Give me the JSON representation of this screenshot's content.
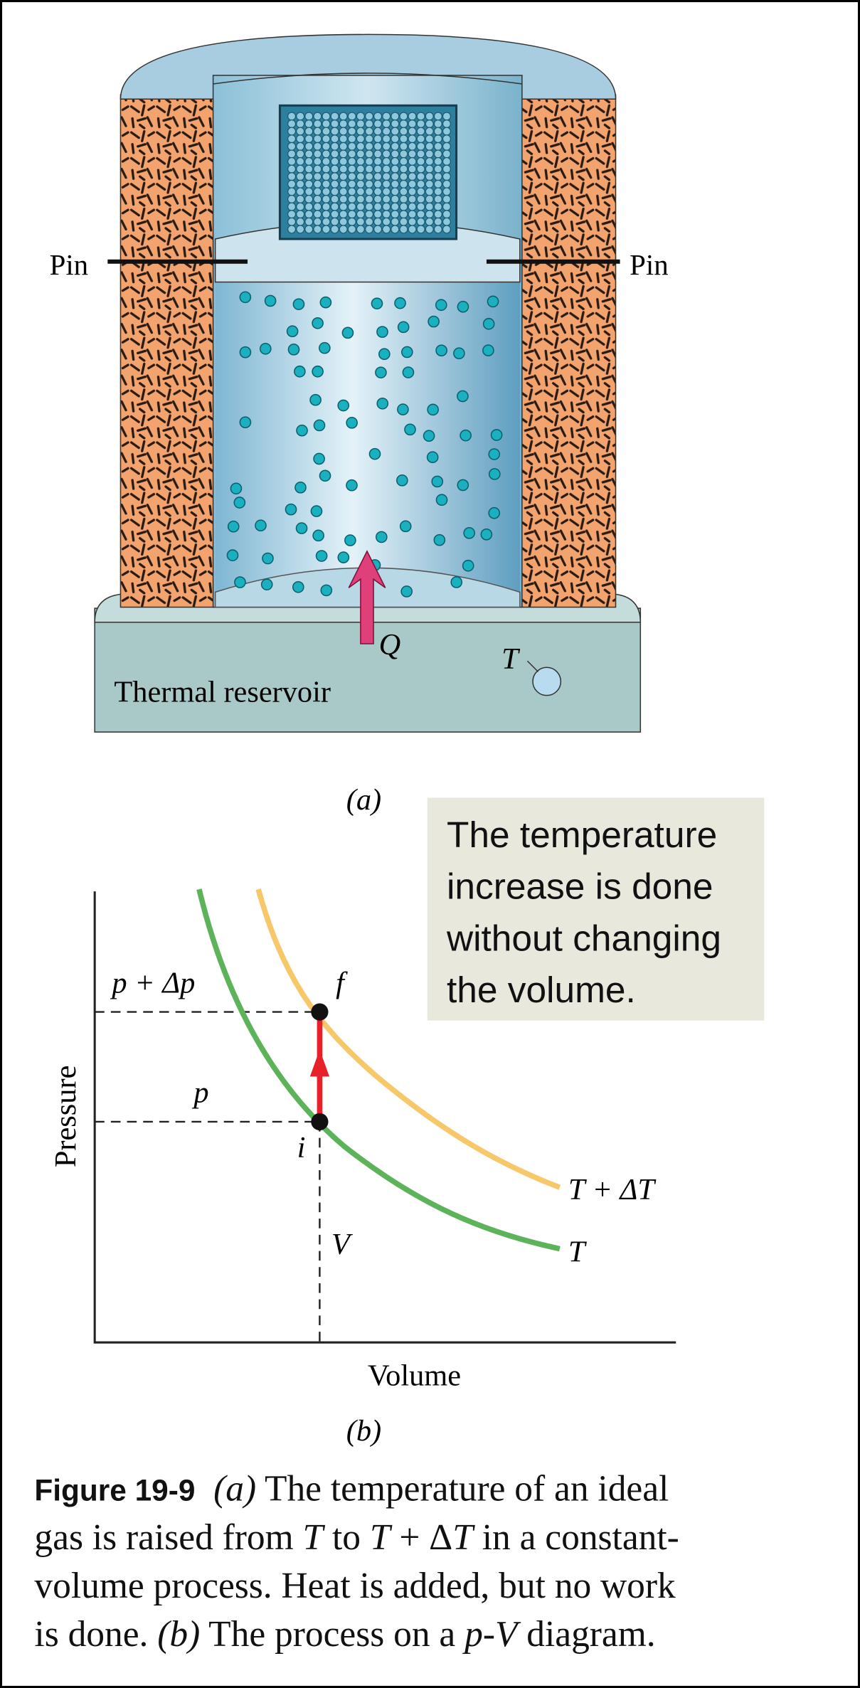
{
  "figure_a": {
    "pin_left": "Pin",
    "pin_right": "Pin",
    "heat": "Q",
    "thermometer": "T",
    "reservoir": "Thermal reservoir",
    "panel_label": "(a)"
  },
  "callout": {
    "lines": [
      "The temperature",
      "increase is done",
      "without changing",
      "the volume."
    ]
  },
  "figure_b": {
    "y_axis_label": "Pressure",
    "x_axis_label": "Volume",
    "panel_label": "(b)",
    "p_final": "p + Δp",
    "p_initial": "p",
    "point_final": "f",
    "point_initial": "i",
    "volume": "V",
    "curve_high": "T + ΔT",
    "curve_low": "T"
  },
  "caption": {
    "label": "Figure 19-9",
    "lines": [
      [
        {
          "text": "(a)",
          "italic": true
        },
        {
          "text": " The temperature of an ideal"
        }
      ],
      [
        {
          "text": "gas is raised from "
        },
        {
          "text": "T",
          "italic": true
        },
        {
          "text": " to "
        },
        {
          "text": "T",
          "italic": true
        },
        {
          "text": " + Δ"
        },
        {
          "text": "T",
          "italic": true
        },
        {
          "text": " in a constant-"
        }
      ],
      [
        {
          "text": "volume process. Heat is added, but no work"
        }
      ],
      [
        {
          "text": "is done. "
        },
        {
          "text": "(b)",
          "italic": true
        },
        {
          "text": " The process on a "
        },
        {
          "text": "p",
          "italic": true
        },
        {
          "text": "-"
        },
        {
          "text": "V",
          "italic": true
        },
        {
          "text": " diagram."
        }
      ]
    ]
  }
}
